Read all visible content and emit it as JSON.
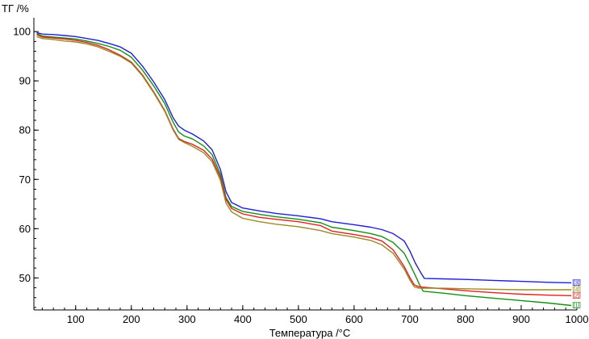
{
  "chart_data": {
    "type": "line",
    "ylabel": "ТГ /%",
    "xlabel": "Температура /°C",
    "xlim": [
      25,
      1000
    ],
    "ylim": [
      43.5,
      101.5
    ],
    "x_ticks": [
      100,
      200,
      300,
      400,
      500,
      600,
      700,
      800,
      900,
      1000
    ],
    "y_ticks": [
      50,
      60,
      70,
      80,
      90,
      100
    ],
    "x_minor_step": 20,
    "y_minor_step": 2,
    "grid": false,
    "series": [
      {
        "tag": "[3]",
        "color": "#1f1fd6",
        "points": [
          [
            30,
            99.8
          ],
          [
            40,
            99.5
          ],
          [
            60,
            99.4
          ],
          [
            80,
            99.2
          ],
          [
            100,
            99.0
          ],
          [
            120,
            98.6
          ],
          [
            140,
            98.2
          ],
          [
            160,
            97.6
          ],
          [
            180,
            96.9
          ],
          [
            200,
            95.6
          ],
          [
            220,
            93.0
          ],
          [
            240,
            89.8
          ],
          [
            260,
            86.2
          ],
          [
            275,
            82.5
          ],
          [
            285,
            80.8
          ],
          [
            295,
            80.0
          ],
          [
            310,
            79.2
          ],
          [
            330,
            77.8
          ],
          [
            345,
            76.0
          ],
          [
            360,
            72.0
          ],
          [
            370,
            67.5
          ],
          [
            380,
            65.3
          ],
          [
            400,
            64.2
          ],
          [
            430,
            63.6
          ],
          [
            460,
            63.1
          ],
          [
            500,
            62.6
          ],
          [
            540,
            62.0
          ],
          [
            560,
            61.4
          ],
          [
            600,
            60.8
          ],
          [
            630,
            60.3
          ],
          [
            650,
            59.8
          ],
          [
            670,
            59.0
          ],
          [
            690,
            57.5
          ],
          [
            700,
            55.5
          ],
          [
            710,
            53.0
          ],
          [
            720,
            51.0
          ],
          [
            726,
            49.9
          ],
          [
            760,
            49.8
          ],
          [
            800,
            49.7
          ],
          [
            850,
            49.5
          ],
          [
            900,
            49.3
          ],
          [
            950,
            49.1
          ],
          [
            990,
            49.0
          ]
        ]
      },
      {
        "tag": "[1]",
        "color": "#139113",
        "points": [
          [
            30,
            99.6
          ],
          [
            40,
            99.1
          ],
          [
            60,
            98.9
          ],
          [
            80,
            98.7
          ],
          [
            100,
            98.5
          ],
          [
            120,
            98.1
          ],
          [
            140,
            97.6
          ],
          [
            160,
            97.0
          ],
          [
            180,
            96.2
          ],
          [
            200,
            94.8
          ],
          [
            220,
            92.2
          ],
          [
            240,
            89.0
          ],
          [
            260,
            85.4
          ],
          [
            275,
            81.6
          ],
          [
            285,
            79.6
          ],
          [
            295,
            78.8
          ],
          [
            310,
            78.2
          ],
          [
            330,
            76.8
          ],
          [
            345,
            75.0
          ],
          [
            360,
            71.0
          ],
          [
            370,
            66.3
          ],
          [
            380,
            64.5
          ],
          [
            400,
            63.5
          ],
          [
            430,
            62.9
          ],
          [
            460,
            62.4
          ],
          [
            500,
            61.9
          ],
          [
            540,
            61.2
          ],
          [
            560,
            60.3
          ],
          [
            600,
            59.6
          ],
          [
            630,
            59.0
          ],
          [
            650,
            58.4
          ],
          [
            670,
            57.2
          ],
          [
            690,
            55.0
          ],
          [
            700,
            52.8
          ],
          [
            710,
            50.5
          ],
          [
            718,
            48.5
          ],
          [
            724,
            47.3
          ],
          [
            760,
            46.9
          ],
          [
            800,
            46.4
          ],
          [
            850,
            45.9
          ],
          [
            900,
            45.4
          ],
          [
            950,
            44.9
          ],
          [
            990,
            44.4
          ]
        ]
      },
      {
        "tag": "[2]",
        "color": "#e02020",
        "points": [
          [
            30,
            99.4
          ],
          [
            40,
            98.9
          ],
          [
            60,
            98.7
          ],
          [
            80,
            98.5
          ],
          [
            100,
            98.2
          ],
          [
            120,
            97.8
          ],
          [
            140,
            97.2
          ],
          [
            160,
            96.3
          ],
          [
            180,
            95.2
          ],
          [
            200,
            93.8
          ],
          [
            220,
            91.2
          ],
          [
            240,
            87.8
          ],
          [
            260,
            84.0
          ],
          [
            275,
            80.2
          ],
          [
            285,
            78.3
          ],
          [
            295,
            77.7
          ],
          [
            310,
            77.1
          ],
          [
            330,
            75.9
          ],
          [
            345,
            74.1
          ],
          [
            360,
            70.4
          ],
          [
            370,
            65.9
          ],
          [
            380,
            64.1
          ],
          [
            400,
            63.0
          ],
          [
            430,
            62.3
          ],
          [
            460,
            61.9
          ],
          [
            500,
            61.4
          ],
          [
            540,
            60.6
          ],
          [
            560,
            59.5
          ],
          [
            600,
            58.8
          ],
          [
            630,
            58.2
          ],
          [
            650,
            57.5
          ],
          [
            670,
            55.7
          ],
          [
            690,
            52.3
          ],
          [
            700,
            50.1
          ],
          [
            708,
            48.6
          ],
          [
            716,
            48.2
          ],
          [
            760,
            47.8
          ],
          [
            800,
            47.4
          ],
          [
            850,
            47.0
          ],
          [
            900,
            46.7
          ],
          [
            950,
            46.5
          ],
          [
            990,
            46.4
          ]
        ]
      },
      {
        "tag": "[4]",
        "color": "#9a8a22",
        "points": [
          [
            30,
            99.0
          ],
          [
            40,
            98.6
          ],
          [
            60,
            98.4
          ],
          [
            80,
            98.1
          ],
          [
            100,
            97.9
          ],
          [
            120,
            97.5
          ],
          [
            140,
            96.9
          ],
          [
            160,
            96.0
          ],
          [
            180,
            95.0
          ],
          [
            200,
            93.6
          ],
          [
            220,
            91.0
          ],
          [
            240,
            87.6
          ],
          [
            260,
            83.8
          ],
          [
            275,
            80.0
          ],
          [
            285,
            78.1
          ],
          [
            295,
            77.5
          ],
          [
            310,
            76.7
          ],
          [
            330,
            75.4
          ],
          [
            345,
            73.6
          ],
          [
            360,
            69.8
          ],
          [
            370,
            65.2
          ],
          [
            380,
            63.4
          ],
          [
            400,
            62.1
          ],
          [
            430,
            61.4
          ],
          [
            460,
            60.9
          ],
          [
            500,
            60.4
          ],
          [
            540,
            59.6
          ],
          [
            560,
            59.0
          ],
          [
            600,
            58.3
          ],
          [
            630,
            57.6
          ],
          [
            650,
            56.7
          ],
          [
            670,
            55.0
          ],
          [
            690,
            51.8
          ],
          [
            700,
            49.6
          ],
          [
            708,
            48.2
          ],
          [
            716,
            47.9
          ],
          [
            760,
            47.9
          ],
          [
            800,
            47.8
          ],
          [
            850,
            47.7
          ],
          [
            900,
            47.6
          ],
          [
            950,
            47.6
          ],
          [
            990,
            47.6
          ]
        ]
      }
    ]
  }
}
